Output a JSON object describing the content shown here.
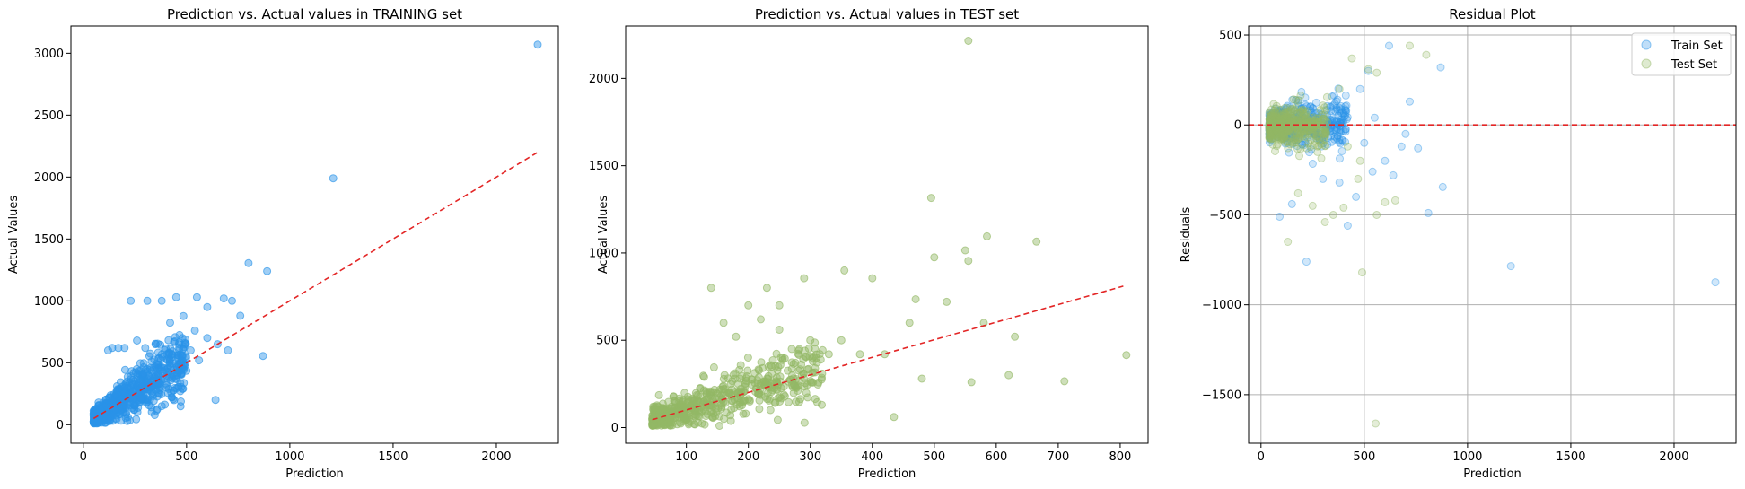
{
  "colors": {
    "train": "#2a93e8",
    "test": "#93b865",
    "fit_line": "#e32626",
    "axes": "#000000",
    "grid": "#b0b0b0"
  },
  "chart_data": [
    {
      "type": "scatter",
      "title": "Prediction vs. Actual values in TRAINING set",
      "xlabel": "Prediction",
      "ylabel": "Actual Values",
      "xlim": [
        -60,
        2300
      ],
      "ylim": [
        -150,
        3220
      ],
      "xticks": [
        0,
        500,
        1000,
        1500,
        2000
      ],
      "yticks": [
        0,
        500,
        1000,
        1500,
        2000,
        2500,
        3000
      ],
      "grid": false,
      "series": [
        {
          "color": "#2a93e8",
          "alpha": 0.45,
          "cluster": {
            "x_range": [
              50,
              500
            ],
            "count": 700
          },
          "points": [
            [
              2200,
              3070
            ],
            [
              1210,
              1990
            ],
            [
              800,
              1305
            ],
            [
              890,
              1240
            ],
            [
              870,
              555
            ],
            [
              640,
              200
            ],
            [
              550,
              1030
            ],
            [
              450,
              1030
            ],
            [
              380,
              1000
            ],
            [
              310,
              1000
            ],
            [
              230,
              1000
            ],
            [
              600,
              950
            ],
            [
              680,
              1020
            ],
            [
              720,
              1000
            ],
            [
              760,
              880
            ],
            [
              700,
              600
            ],
            [
              650,
              650
            ],
            [
              600,
              700
            ],
            [
              540,
              760
            ],
            [
              480,
              700
            ],
            [
              520,
              600
            ],
            [
              560,
              520
            ],
            [
              460,
              560
            ],
            [
              420,
              520
            ],
            [
              400,
              300
            ],
            [
              470,
              270
            ],
            [
              430,
              220
            ],
            [
              370,
              250
            ],
            [
              330,
              300
            ],
            [
              280,
              210
            ],
            [
              140,
              620
            ],
            [
              170,
              620
            ],
            [
              200,
              620
            ],
            [
              120,
              600
            ],
            [
              300,
              620
            ],
            [
              350,
              650
            ],
            [
              260,
              680
            ],
            [
              240,
              200
            ],
            [
              200,
              160
            ],
            [
              150,
              120
            ],
            [
              100,
              80
            ],
            [
              80,
              60
            ],
            [
              70,
              40
            ],
            [
              60,
              50
            ]
          ]
        }
      ],
      "reference_line": {
        "style": "dashed",
        "from": [
          50,
          50
        ],
        "to": [
          2200,
          2200
        ]
      }
    },
    {
      "type": "scatter",
      "title": "Prediction vs. Actual values in TEST set",
      "xlabel": "Prediction",
      "ylabel": "Actual Values",
      "xlim": [
        2,
        845
      ],
      "ylim": [
        -90,
        2300
      ],
      "xticks": [
        100,
        200,
        300,
        400,
        500,
        600,
        700,
        800
      ],
      "yticks": [
        0,
        500,
        1000,
        1500,
        2000
      ],
      "grid": false,
      "series": [
        {
          "color": "#93b865",
          "alpha": 0.45,
          "cluster": {
            "x_range": [
              45,
              320
            ],
            "count": 600
          },
          "points": [
            [
              555,
              2215
            ],
            [
              495,
              1315
            ],
            [
              585,
              1095
            ],
            [
              665,
              1065
            ],
            [
              550,
              1015
            ],
            [
              500,
              975
            ],
            [
              555,
              955
            ],
            [
              355,
              900
            ],
            [
              400,
              855
            ],
            [
              290,
              855
            ],
            [
              140,
              800
            ],
            [
              230,
              800
            ],
            [
              200,
              700
            ],
            [
              250,
              700
            ],
            [
              470,
              735
            ],
            [
              520,
              720
            ],
            [
              460,
              600
            ],
            [
              580,
              600
            ],
            [
              630,
              520
            ],
            [
              810,
              415
            ],
            [
              710,
              265
            ],
            [
              620,
              300
            ],
            [
              560,
              260
            ],
            [
              480,
              280
            ],
            [
              435,
              60
            ],
            [
              380,
              420
            ],
            [
              420,
              420
            ],
            [
              350,
              500
            ],
            [
              300,
              500
            ],
            [
              270,
              450
            ],
            [
              330,
              420
            ],
            [
              250,
              560
            ],
            [
              220,
              620
            ],
            [
              180,
              520
            ],
            [
              160,
              600
            ]
          ]
        }
      ],
      "reference_line": {
        "style": "dashed",
        "from": [
          45,
          45
        ],
        "to": [
          805,
          810
        ]
      }
    },
    {
      "type": "scatter",
      "title": "Residual Plot",
      "xlabel": "Prediction",
      "ylabel": "Residuals",
      "xlim": [
        -60,
        2300
      ],
      "ylim": [
        -1770,
        550
      ],
      "xticks": [
        0,
        500,
        1000,
        1500,
        2000
      ],
      "yticks": [
        500,
        0,
        -500,
        -1000,
        -1500
      ],
      "grid": true,
      "legend": {
        "placement": "top-right",
        "entries": [
          "Train Set",
          "Test Set"
        ]
      },
      "series": [
        {
          "name": "Train Set",
          "color": "#2a93e8",
          "alpha": 0.22,
          "cluster": {
            "x_range": [
              40,
              420
            ],
            "count": 500
          },
          "points": [
            [
              2200,
              -875
            ],
            [
              1210,
              -785
            ],
            [
              880,
              -345
            ],
            [
              870,
              320
            ],
            [
              810,
              -490
            ],
            [
              760,
              -130
            ],
            [
              640,
              -280
            ],
            [
              620,
              440
            ],
            [
              600,
              -200
            ],
            [
              550,
              40
            ],
            [
              520,
              300
            ],
            [
              480,
              200
            ],
            [
              460,
              -400
            ],
            [
              420,
              -560
            ],
            [
              380,
              -320
            ],
            [
              300,
              -300
            ],
            [
              220,
              -760
            ],
            [
              90,
              -510
            ],
            [
              150,
              -440
            ],
            [
              500,
              -100
            ],
            [
              540,
              -260
            ],
            [
              680,
              -120
            ],
            [
              720,
              130
            ],
            [
              700,
              -50
            ]
          ]
        },
        {
          "name": "Test Set",
          "color": "#93b865",
          "alpha": 0.25,
          "cluster": {
            "x_range": [
              40,
              320
            ],
            "count": 450
          },
          "points": [
            [
              555,
              -1660
            ],
            [
              490,
              -820
            ],
            [
              130,
              -650
            ],
            [
              310,
              -540
            ],
            [
              400,
              -460
            ],
            [
              470,
              -300
            ],
            [
              520,
              310
            ],
            [
              560,
              290
            ],
            [
              720,
              440
            ],
            [
              800,
              390
            ],
            [
              440,
              370
            ],
            [
              600,
              -430
            ],
            [
              650,
              -420
            ],
            [
              560,
              -500
            ],
            [
              350,
              -500
            ],
            [
              250,
              -450
            ],
            [
              180,
              -380
            ],
            [
              480,
              -200
            ],
            [
              420,
              -120
            ],
            [
              380,
              200
            ]
          ]
        }
      ],
      "reference_line": {
        "style": "dashed",
        "horizontal_y": 0
      }
    }
  ]
}
